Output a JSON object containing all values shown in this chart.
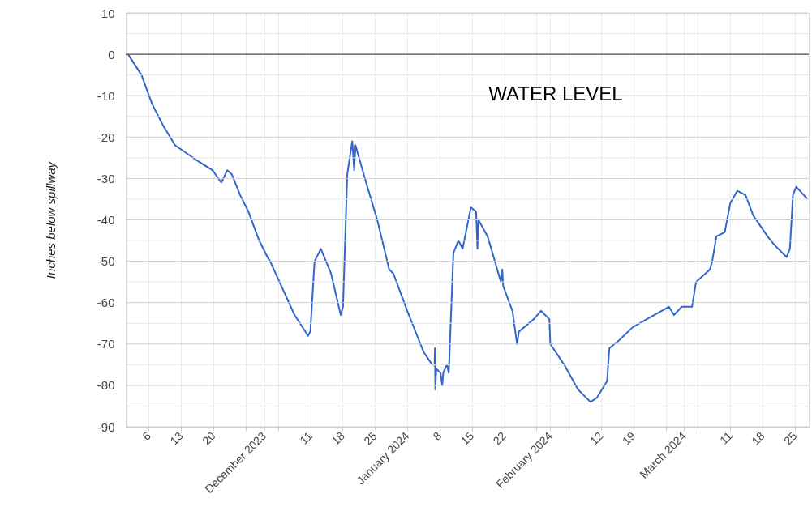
{
  "chart_data": {
    "type": "line",
    "ylabel": "Inches below spillway",
    "xlim": [
      "2023-11-01",
      "2024-03-28"
    ],
    "xticks": [
      {
        "value": "2023-11-06",
        "label": "6"
      },
      {
        "value": "2023-11-13",
        "label": "13"
      },
      {
        "value": "2023-11-20",
        "label": "20"
      },
      {
        "value": "2023-11-27",
        "label": null
      },
      {
        "value": "2023-12-01",
        "label": "December 2023"
      },
      {
        "value": "2023-12-04",
        "label": null
      },
      {
        "value": "2023-12-11",
        "label": "11"
      },
      {
        "value": "2023-12-18",
        "label": "18"
      },
      {
        "value": "2023-12-25",
        "label": "25"
      },
      {
        "value": "2024-01-01",
        "label": "January 2024"
      },
      {
        "value": "2024-01-08",
        "label": "8"
      },
      {
        "value": "2024-01-15",
        "label": "15"
      },
      {
        "value": "2024-01-22",
        "label": "22"
      },
      {
        "value": "2024-01-29",
        "label": null
      },
      {
        "value": "2024-02-01",
        "label": "February 2024"
      },
      {
        "value": "2024-02-05",
        "label": null
      },
      {
        "value": "2024-02-12",
        "label": "12"
      },
      {
        "value": "2024-02-19",
        "label": "19"
      },
      {
        "value": "2024-02-26",
        "label": null
      },
      {
        "value": "2024-03-01",
        "label": "March 2024"
      },
      {
        "value": "2024-03-04",
        "label": null
      },
      {
        "value": "2024-03-11",
        "label": "11"
      },
      {
        "value": "2024-03-18",
        "label": "18"
      },
      {
        "value": "2024-03-25",
        "label": "25"
      }
    ],
    "ylim": [
      -90,
      10
    ],
    "yticks": [
      -90,
      {
        "value": -85,
        "label": null
      },
      -80,
      {
        "value": -75,
        "label": null
      },
      -70,
      {
        "value": -65,
        "label": null
      },
      -60,
      {
        "value": -55,
        "label": null
      },
      -50,
      {
        "value": -45,
        "label": null
      },
      -40,
      {
        "value": -35,
        "label": null
      },
      -30,
      {
        "value": -25,
        "label": null
      },
      -20,
      {
        "value": -15,
        "label": null
      },
      -10,
      {
        "value": -5,
        "label": null
      },
      0,
      {
        "value": 5,
        "label": null
      },
      10
    ],
    "grid": true,
    "marker": "none",
    "line_style": "solid",
    "ref_lines": [
      {
        "axis": "y",
        "value": 0,
        "color": "#333333"
      }
    ],
    "series": [
      {
        "name": "WATER LEVEL",
        "color": "#3366cc",
        "x": [
          "2023-11-01T12:00",
          "2023-11-04T10:00",
          "2023-11-06T17:00",
          "2023-11-09",
          "2023-11-11T17:00",
          "2023-11-16T22:00",
          "2023-11-19T19:00",
          "2023-11-21T17:00",
          "2023-11-23",
          "2023-11-24",
          "2023-11-25T19:00",
          "2023-11-27T14:00",
          "2023-11-29T22:00",
          "2023-12-01T17:00",
          "2023-12-02T07:00",
          "2023-12-03T12:00",
          "2023-12-07T14:00",
          "2023-12-10T12:00",
          "2023-12-11",
          "2023-12-11T22:00",
          "2023-12-13T07:00",
          "2023-12-15T12:00",
          "2023-12-17T14:00",
          "2023-12-18T02:00",
          "2023-12-19",
          "2023-12-20T02:00",
          "2023-12-20T12:00",
          "2023-12-20T19:00",
          "2023-12-23T02:00",
          "2023-12-25T12:00",
          "2023-12-28T02:00",
          "2023-12-29",
          "2024-01-01",
          "2024-01-04T14:00",
          "2024-01-06T10:00",
          "2024-01-06T22:00",
          "2024-01-07",
          "2024-01-07T02:00",
          "2024-01-07T07:00",
          "2024-01-08T05:00",
          "2024-01-08T14:00",
          "2024-01-08T19:00",
          "2024-01-09T14:00",
          "2024-01-10",
          "2024-01-11",
          "2024-01-12T02:00",
          "2024-01-13",
          "2024-01-14T19:00",
          "2024-01-15T22:00",
          "2024-01-16T05:00",
          "2024-01-16T10:00",
          "2024-01-18T10:00",
          "2024-01-21T07:00",
          "2024-01-21T14:00",
          "2024-01-21T19:00",
          "2024-01-23T19:00",
          "2024-01-24T19:00",
          "2024-01-25T05:00",
          "2024-01-28T10:00",
          "2024-01-30",
          "2024-01-31T19:00",
          "2024-02-01",
          "2024-02-04",
          "2024-02-07",
          "2024-02-09T17:00",
          "2024-02-11T02:00",
          "2024-02-13T07:00",
          "2024-02-13T19:00",
          "2024-02-16",
          "2024-02-18T19:00",
          "2024-02-21T22:00",
          "2024-02-26T17:00",
          "2024-02-27T19:00",
          "2024-02-29T12:00",
          "2024-03-02T17:00",
          "2024-03-03T14:00",
          "2024-03-06T14:00",
          "2024-03-07T02:00",
          "2024-03-08",
          "2024-03-09T19:00",
          "2024-03-11",
          "2024-03-12T12:00",
          "2024-03-14T07:00",
          "2024-03-16",
          "2024-03-19T02:00",
          "2024-03-20T12:00",
          "2024-03-23T05:00",
          "2024-03-23T22:00",
          "2024-03-24T14:00",
          "2024-03-25T07:00",
          "2024-03-27T17:00"
        ],
        "values": [
          0,
          -5,
          -12,
          -17,
          -22,
          -26,
          -28,
          -31,
          -28,
          -29,
          -34,
          -38,
          -45,
          -49,
          -50,
          -53,
          -63,
          -68,
          -67,
          -50,
          -47,
          -53,
          -63,
          -61,
          -29,
          -21,
          -28,
          -22,
          -31,
          -40,
          -52,
          -53,
          -62,
          -72,
          -75,
          -75,
          -71,
          -81,
          -76,
          -77,
          -80,
          -77,
          -75,
          -77,
          -48,
          -45,
          -47,
          -37,
          -38,
          -47,
          -40,
          -44,
          -55,
          -52,
          -56,
          -62,
          -70,
          -67,
          -64,
          -62,
          -64,
          -70,
          -75,
          -81,
          -84,
          -83,
          -79,
          -71,
          -69,
          -66,
          -64,
          -61,
          -63,
          -61,
          -61,
          -55,
          -52,
          -50,
          -44,
          -43,
          -36,
          -33,
          -34,
          -39,
          -44,
          -46,
          -49,
          -47,
          -34,
          -32,
          -35
        ]
      }
    ]
  }
}
